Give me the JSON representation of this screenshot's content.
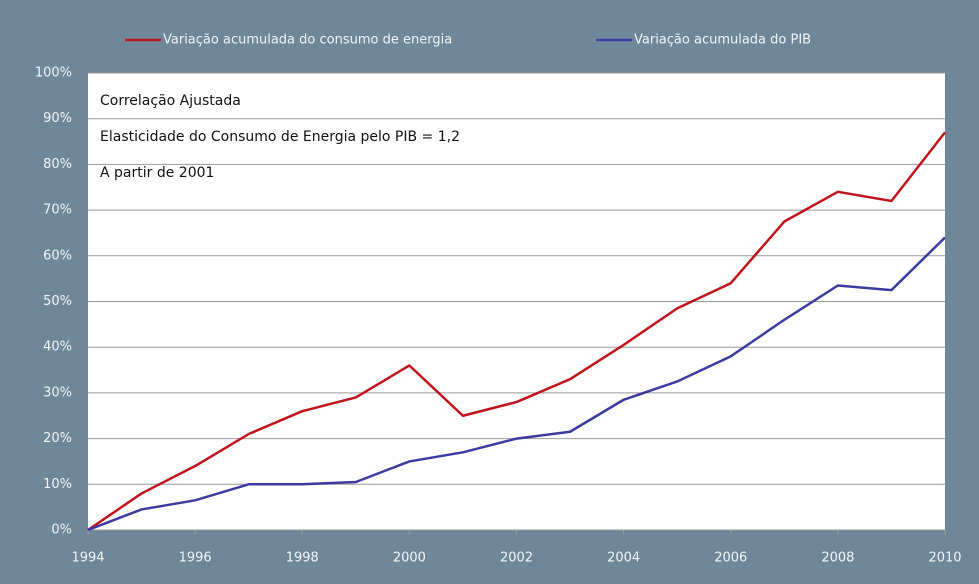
{
  "chart_data": {
    "type": "line",
    "x": [
      1994,
      1995,
      1996,
      1997,
      1998,
      1999,
      2000,
      2001,
      2002,
      2003,
      2004,
      2005,
      2006,
      2007,
      2008,
      2009,
      2010
    ],
    "series": [
      {
        "name": "Variação acumulada do consumo de energia",
        "color": "#c0141c",
        "values": [
          0,
          8,
          14,
          21,
          26,
          29,
          36,
          25,
          28,
          33,
          40.5,
          48.5,
          54,
          67.5,
          74,
          72,
          87
        ]
      },
      {
        "name": "Variação acumulada do PIB",
        "color": "#3c3ca0",
        "values": [
          0,
          4.5,
          6.5,
          10,
          10,
          10.5,
          15,
          17,
          20,
          21.5,
          28.5,
          32.5,
          38,
          46,
          53.5,
          52.5,
          64
        ]
      }
    ],
    "annotations": [
      "Correlação Ajustada",
      "Elasticidade do Consumo de Energia pelo PIB = 1,2",
      "A partir de 2001"
    ],
    "xlim": [
      1994,
      2010
    ],
    "xticks": [
      1994,
      1996,
      1998,
      2000,
      2002,
      2004,
      2006,
      2008,
      2010
    ],
    "ylim": [
      0,
      100
    ],
    "yticks": [
      {
        "value": 0,
        "label": "0%"
      },
      {
        "value": 10,
        "label": "10%"
      },
      {
        "value": 20,
        "label": "20%"
      },
      {
        "value": 30,
        "label": "30%"
      },
      {
        "value": 40,
        "label": "40%"
      },
      {
        "value": 50,
        "label": "50%"
      },
      {
        "value": 60,
        "label": "60%"
      },
      {
        "value": 70,
        "label": "70%"
      },
      {
        "value": 80,
        "label": "80%"
      },
      {
        "value": 90,
        "label": "90%"
      },
      {
        "value": 100,
        "label": "100%"
      }
    ],
    "grid": true,
    "legend": "top"
  }
}
